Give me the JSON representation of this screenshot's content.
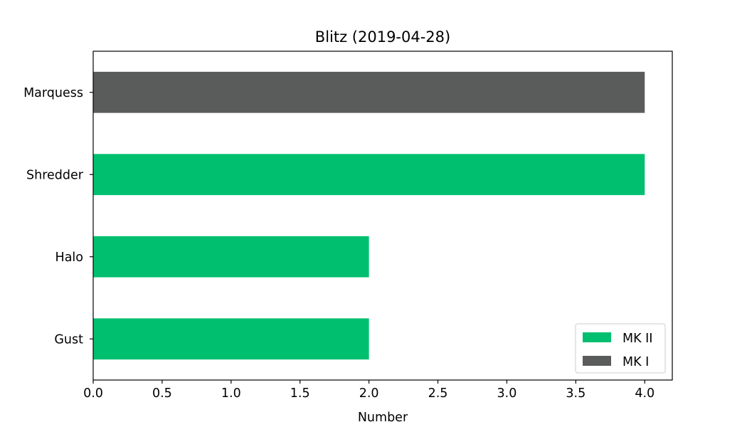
{
  "chart_data": {
    "type": "bar",
    "orientation": "horizontal",
    "title": "Blitz (2019-04-28)",
    "xlabel": "Number",
    "ylabel": "",
    "xlim": [
      0,
      4.2
    ],
    "xticks": [
      "0.0",
      "0.5",
      "1.0",
      "1.5",
      "2.0",
      "2.5",
      "3.0",
      "3.5",
      "4.0"
    ],
    "categories": [
      "Gust",
      "Halo",
      "Shredder",
      "Marquess"
    ],
    "values": [
      2,
      2,
      4,
      4
    ],
    "bar_series": [
      "MK II",
      "MK II",
      "MK II",
      "MK I"
    ],
    "series": [
      {
        "name": "MK II",
        "color": "#00bf6f"
      },
      {
        "name": "MK I",
        "color": "#5a5c5b"
      }
    ],
    "legend_position": "lower-right",
    "grid": false
  }
}
